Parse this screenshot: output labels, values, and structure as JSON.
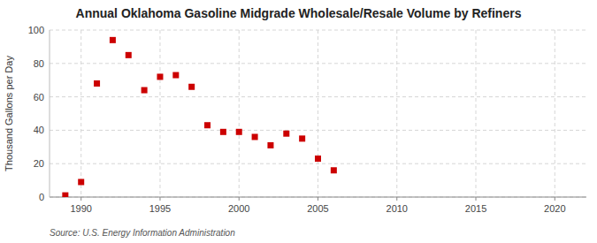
{
  "chart_data": {
    "type": "scatter",
    "title": "Annual Oklahoma Gasoline Midgrade Wholesale/Resale Volume by Refiners",
    "y_label": "Thousand Gallons per Day",
    "annotations": [
      "Source: U.S. Energy Information Administration"
    ],
    "x": [
      1989,
      1990,
      1991,
      1992,
      1993,
      1994,
      1995,
      1996,
      1997,
      1998,
      1999,
      2000,
      2001,
      2002,
      2003,
      2004,
      2005,
      2006
    ],
    "values": [
      1,
      9,
      68,
      94,
      85,
      64,
      72,
      73,
      66,
      43,
      39,
      39,
      36,
      31,
      38,
      35,
      23,
      16
    ],
    "color": "#cc0000",
    "marker": "square",
    "xlim": [
      1988,
      2022
    ],
    "ylim": [
      0,
      100
    ],
    "xticks": [
      1990,
      1995,
      2000,
      2005,
      2010,
      2015,
      2020
    ],
    "yticks": [
      0,
      20,
      40,
      60,
      80,
      100
    ],
    "grid": true
  }
}
